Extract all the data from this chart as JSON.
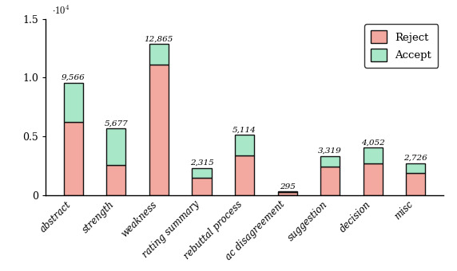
{
  "categories": [
    "abstract",
    "strength",
    "weakness",
    "rating summary",
    "rebuttal process",
    "ac disagreement",
    "suggestion",
    "decision",
    "misc"
  ],
  "reject": [
    6200,
    2550,
    11100,
    1450,
    3400,
    240,
    2400,
    2700,
    1900
  ],
  "accept": [
    3366,
    3127,
    1765,
    865,
    1714,
    55,
    919,
    1352,
    826
  ],
  "totals": [
    9566,
    5677,
    12865,
    2315,
    5114,
    295,
    3319,
    4052,
    2726
  ],
  "reject_color": "#f4a9a0",
  "accept_color": "#a8e8c8",
  "edge_color": "#111111",
  "ylim": [
    0,
    15000
  ],
  "figsize": [
    5.72,
    3.4
  ],
  "dpi": 100,
  "legend_labels": [
    "Reject",
    "Accept"
  ],
  "bar_width": 0.45
}
